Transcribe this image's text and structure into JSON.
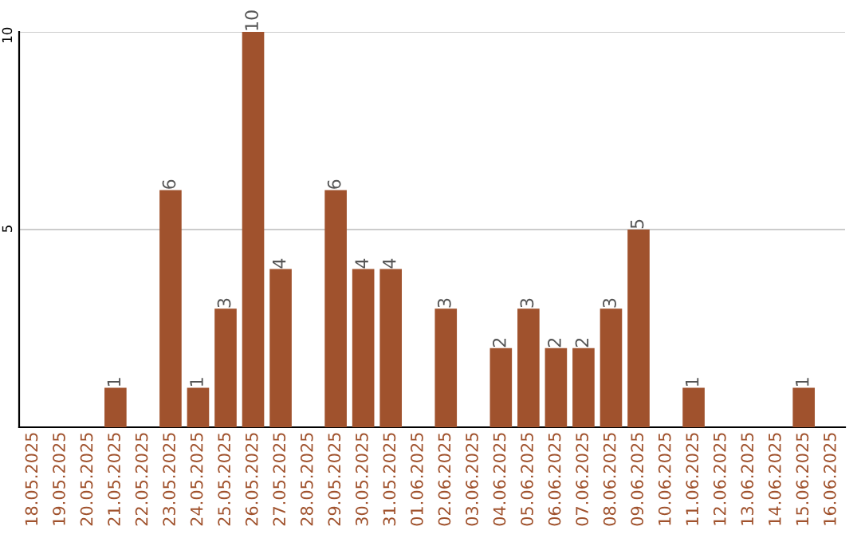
{
  "chart_data": {
    "type": "bar",
    "categories": [
      "18.05.2025",
      "19.05.2025",
      "20.05.2025",
      "21.05.2025",
      "22.05.2025",
      "23.05.2025",
      "24.05.2025",
      "25.05.2025",
      "26.05.2025",
      "27.05.2025",
      "28.05.2025",
      "29.05.2025",
      "30.05.2025",
      "31.05.2025",
      "01.06.2025",
      "02.06.2025",
      "03.06.2025",
      "04.06.2025",
      "05.06.2025",
      "06.06.2025",
      "07.06.2025",
      "08.06.2025",
      "09.06.2025",
      "10.06.2025",
      "11.06.2025",
      "12.06.2025",
      "13.06.2025",
      "14.06.2025",
      "15.06.2025",
      "16.06.2025"
    ],
    "values": [
      0,
      0,
      0,
      1,
      0,
      6,
      1,
      3,
      10,
      4,
      0,
      6,
      4,
      4,
      0,
      3,
      0,
      2,
      3,
      2,
      2,
      3,
      5,
      0,
      1,
      0,
      0,
      0,
      1,
      0
    ],
    "value_labels": [
      null,
      null,
      null,
      "1",
      null,
      "6",
      "1",
      "3",
      "10",
      "4",
      null,
      "6",
      "4",
      "4",
      null,
      "3",
      null,
      "2",
      "3",
      "2",
      "2",
      "3",
      "5",
      null,
      "1",
      null,
      null,
      null,
      "1",
      null
    ],
    "color": "#a0522d",
    "ylim": [
      0,
      10
    ],
    "yticks": [
      5,
      10
    ],
    "grid": "y"
  }
}
